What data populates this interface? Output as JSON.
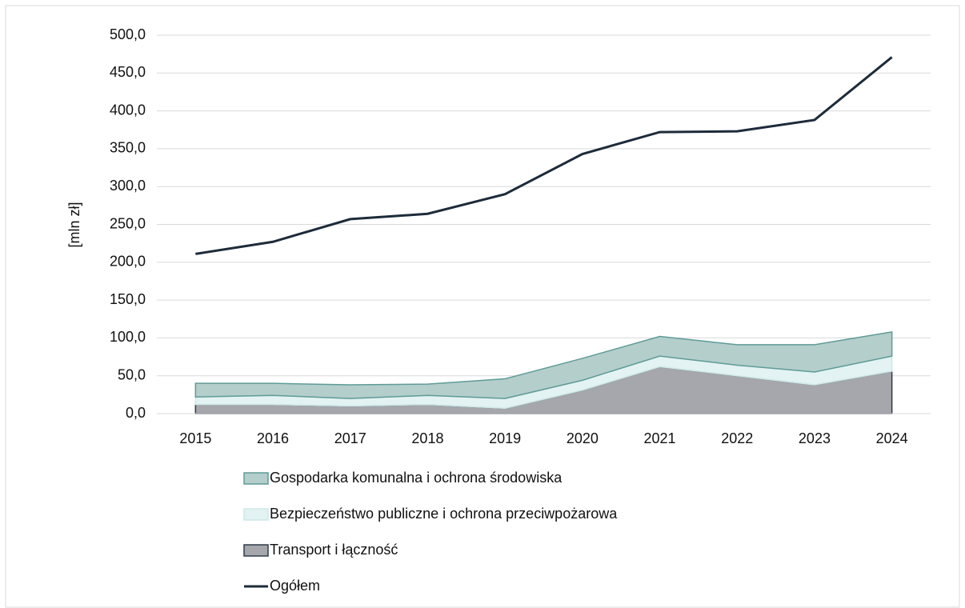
{
  "chart_data": {
    "type": "area",
    "y_label": "[mln zł]",
    "categories": [
      "2015",
      "2016",
      "2017",
      "2018",
      "2019",
      "2020",
      "2021",
      "2022",
      "2023",
      "2024"
    ],
    "series": [
      {
        "name": "Transport i łączność",
        "color": "#a5a7ad",
        "stroke": "#2e3b4a",
        "values": [
          12,
          12,
          10,
          12,
          7,
          31,
          62,
          50,
          38,
          56
        ]
      },
      {
        "name": "Bezpieczeństwo publiczne i ochrona przeciwpożarowa",
        "color": "#e3f2f2",
        "stroke": "#cde8e8",
        "values": [
          10,
          12,
          10,
          12,
          13,
          13,
          14,
          14,
          17,
          20
        ]
      },
      {
        "name": "Gospodarka komunalna i ochrona środowiska",
        "color": "#b4cecc",
        "stroke": "#5f9b97",
        "values": [
          18,
          16,
          18,
          15,
          26,
          29,
          26,
          27,
          36,
          32
        ]
      },
      {
        "name": "Ogółem",
        "type": "line",
        "color": "#1d2b3a",
        "values": [
          211,
          227,
          257,
          264,
          290,
          343,
          372,
          373,
          388,
          471
        ]
      }
    ],
    "legend_order": [
      2,
      1,
      0,
      3
    ],
    "ylim": [
      0,
      500
    ],
    "yticks": [
      {
        "value": 0,
        "label": "0,0"
      },
      {
        "value": 50,
        "label": "50,0"
      },
      {
        "value": 100,
        "label": "100,0"
      },
      {
        "value": 150,
        "label": "150,0"
      },
      {
        "value": 200,
        "label": "200,0"
      },
      {
        "value": 250,
        "label": "250,0"
      },
      {
        "value": 300,
        "label": "300,0"
      },
      {
        "value": 350,
        "label": "350,0"
      },
      {
        "value": 400,
        "label": "400,0"
      },
      {
        "value": 450,
        "label": "450,0"
      },
      {
        "value": 500,
        "label": "500,0"
      }
    ],
    "grid": true
  }
}
